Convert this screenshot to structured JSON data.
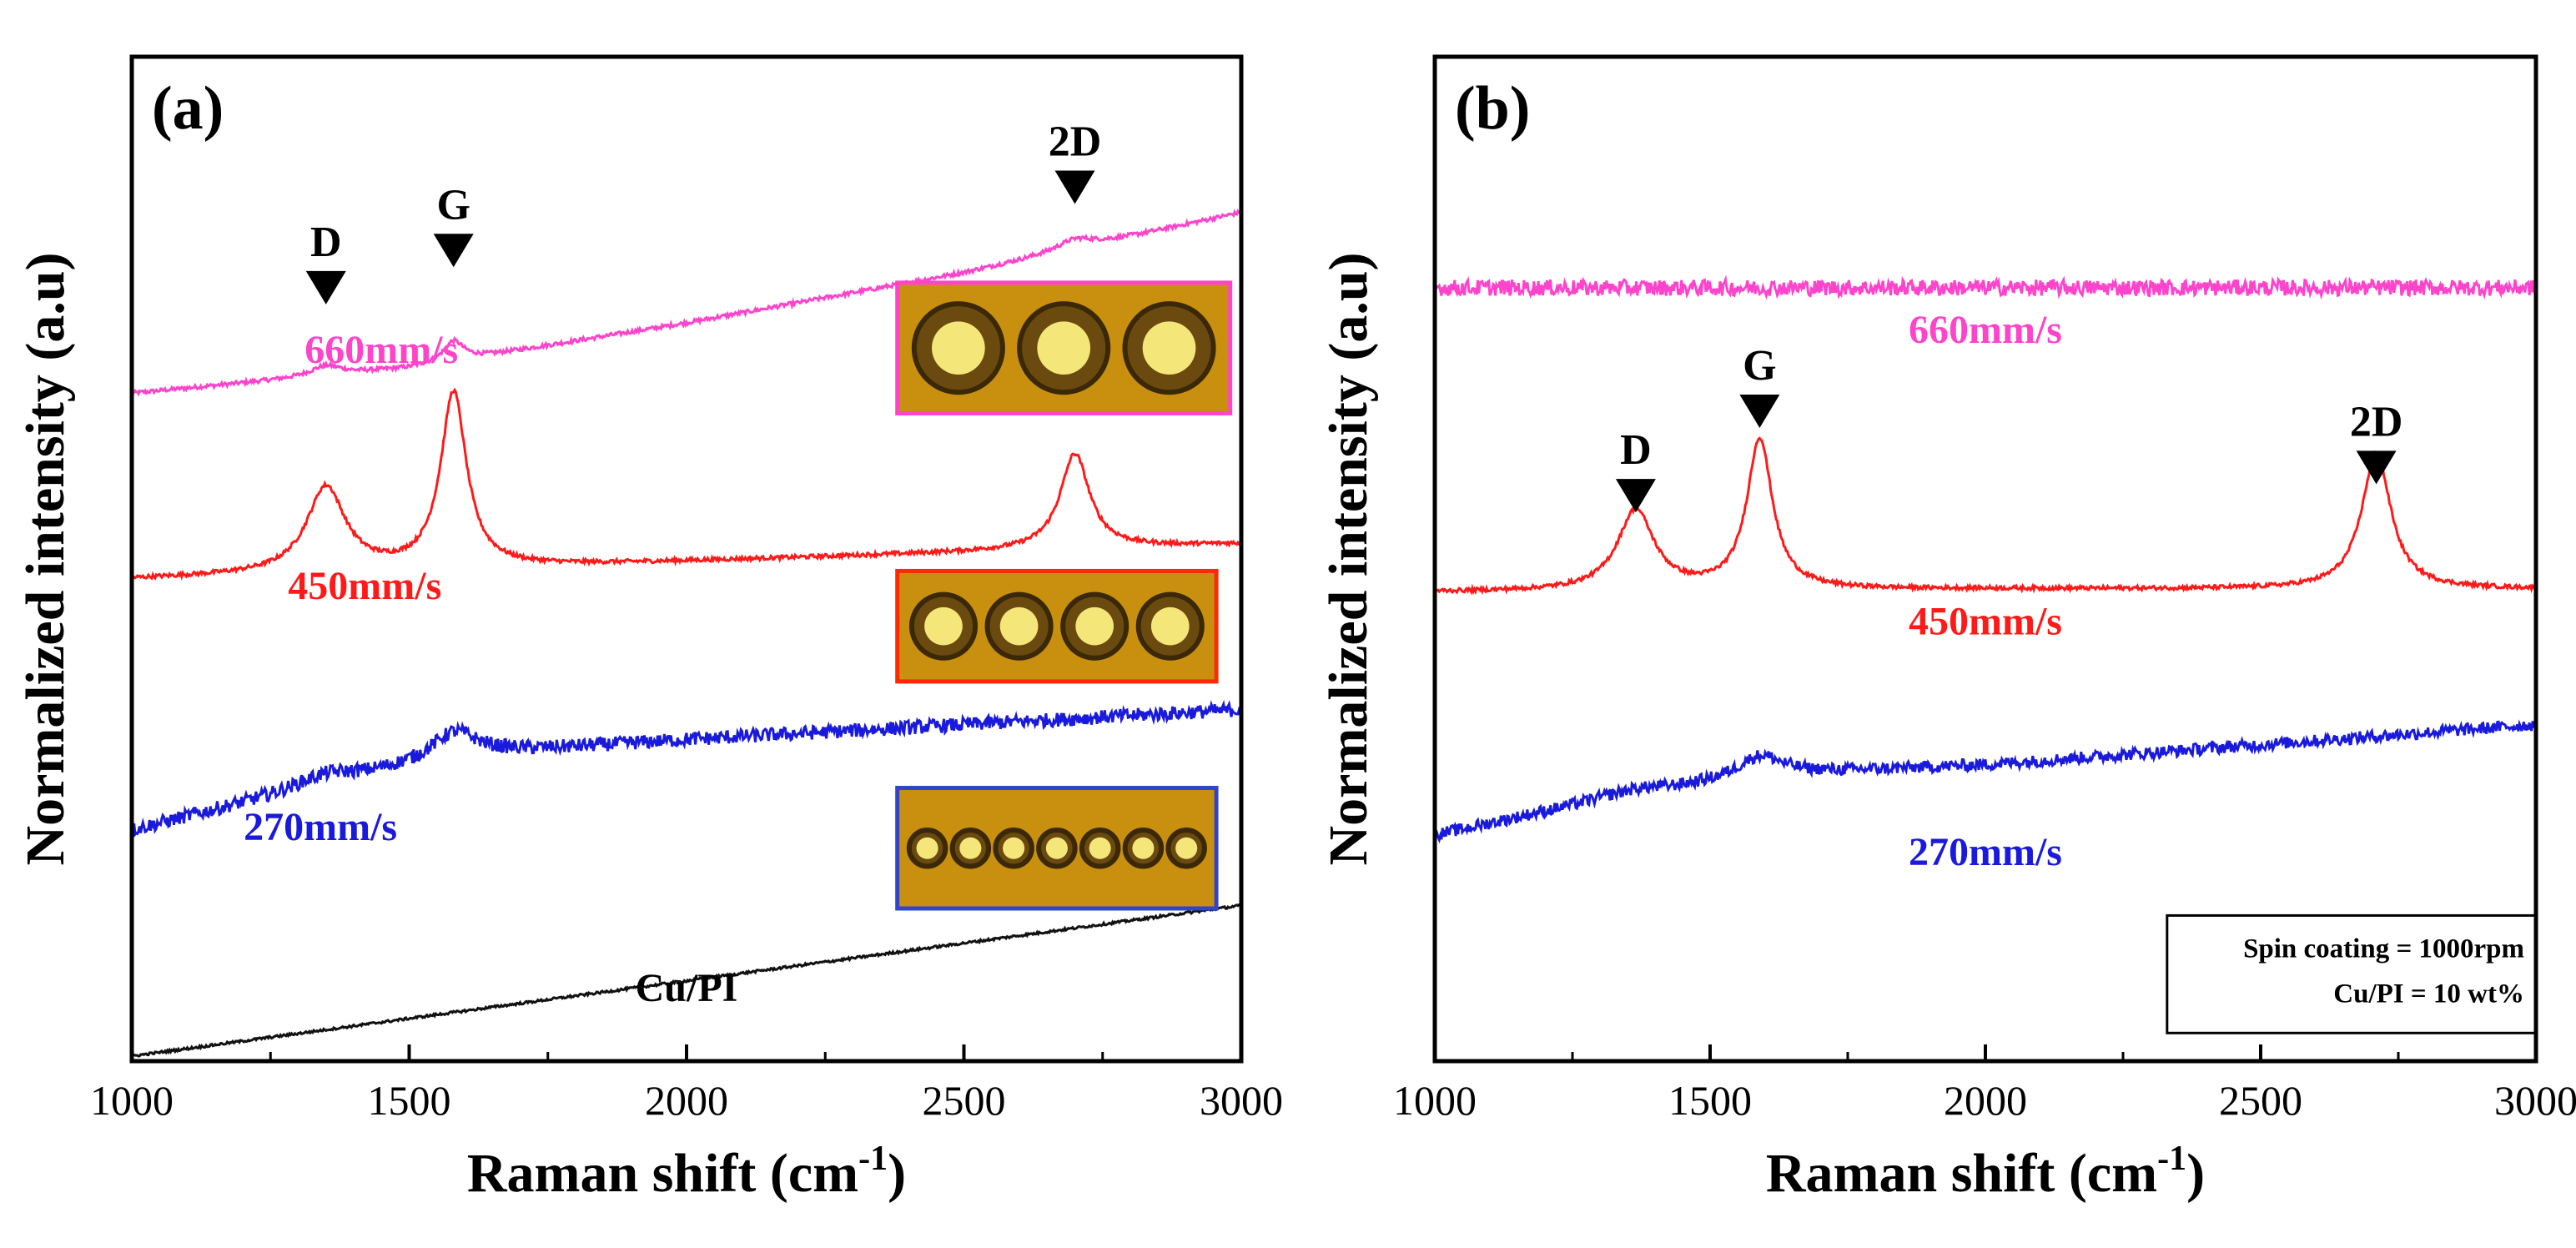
{
  "chart_data": [
    {
      "panel": "(a)",
      "type": "line",
      "xlabel": "Raman shift (cm",
      "xlabel_sup": "-1",
      "xlabel_end": ")",
      "ylabel": "Normalized intensity (a.u)",
      "xlim": [
        1000,
        3000
      ],
      "ylim": [
        0,
        10
      ],
      "xticks": [
        "1000",
        "1500",
        "2000",
        "2500",
        "3000"
      ],
      "y_ticks_shown": false,
      "peaks": [
        {
          "label": "D",
          "x": 1350,
          "y": 7.85
        },
        {
          "label": "G",
          "x": 1580,
          "y": 8.22
        },
        {
          "label": "2D",
          "x": 2700,
          "y": 8.85
        }
      ],
      "series": [
        {
          "name": "660mm/s",
          "color": "#ff44cc",
          "noise": 0.02,
          "label_xy": [
            1450,
            6.95
          ],
          "baseline": [
            [
              1000,
              6.65
            ],
            [
              1500,
              6.9
            ],
            [
              2000,
              7.35
            ],
            [
              2500,
              7.85
            ],
            [
              3000,
              8.45
            ]
          ],
          "peaks": [
            [
              1350,
              0.1,
              35
            ],
            [
              1580,
              0.2,
              22
            ],
            [
              2700,
              0.1,
              40
            ]
          ]
        },
        {
          "name": "450mm/s",
          "color": "#ff1a1a",
          "noise": 0.02,
          "label_xy": [
            1420,
            4.6
          ],
          "baseline": [
            [
              1000,
              4.8
            ],
            [
              3000,
              5.15
            ]
          ],
          "peaks": [
            [
              1350,
              0.85,
              42
            ],
            [
              1580,
              1.75,
              28
            ],
            [
              2700,
              0.95,
              32
            ]
          ]
        },
        {
          "name": "270mm/s",
          "color": "#1a1add",
          "noise": 0.07,
          "label_xy": [
            1340,
            2.2
          ],
          "baseline": [
            [
              1000,
              2.3
            ],
            [
              1300,
              2.7
            ],
            [
              1600,
              3.05
            ],
            [
              2000,
              3.2
            ],
            [
              3000,
              3.5
            ]
          ],
          "peaks": [
            [
              1350,
              0.1,
              60
            ],
            [
              1580,
              0.25,
              50
            ]
          ]
        },
        {
          "name": "Cu/PI",
          "color": "#111111",
          "noise": 0.012,
          "label_xy": [
            2000,
            0.6
          ],
          "baseline": [
            [
              1000,
              0.05
            ],
            [
              3000,
              1.55
            ]
          ],
          "peaks": []
        }
      ],
      "insets": [
        {
          "border": "#ff44cc",
          "spots": 3,
          "x": [
            2380,
            2980
          ],
          "y": [
            6.45,
            7.75
          ]
        },
        {
          "border": "#ff2a00",
          "spots": 4,
          "x": [
            2380,
            2955
          ],
          "y": [
            3.78,
            4.88
          ]
        },
        {
          "border": "#3344cc",
          "spots": 7,
          "x": [
            2380,
            2955
          ],
          "y": [
            1.52,
            2.72
          ]
        }
      ]
    },
    {
      "panel": "(b)",
      "type": "line",
      "xlabel": "Raman shift (cm",
      "xlabel_sup": "-1",
      "xlabel_end": ")",
      "ylabel": "Normalized intensity (a.u)",
      "xlim": [
        1000,
        3000
      ],
      "ylim": [
        0,
        10
      ],
      "xticks": [
        "1000",
        "1500",
        "2000",
        "2500",
        "3000"
      ],
      "y_ticks_shown": false,
      "peaks": [
        {
          "label": "D",
          "x": 1365,
          "y": 5.78
        },
        {
          "label": "G",
          "x": 1590,
          "y": 6.62
        },
        {
          "label": "2D",
          "x": 2710,
          "y": 6.06
        }
      ],
      "series": [
        {
          "name": "660mm/s",
          "color": "#ff44cc",
          "noise": 0.08,
          "label_xy": [
            2000,
            7.15
          ],
          "baseline": [
            [
              1000,
              7.7
            ],
            [
              3000,
              7.7
            ]
          ],
          "peaks": []
        },
        {
          "name": "450mm/s",
          "color": "#ff1a1a",
          "noise": 0.02,
          "label_xy": [
            2000,
            4.25
          ],
          "baseline": [
            [
              1000,
              4.67
            ],
            [
              2000,
              4.7
            ],
            [
              3000,
              4.7
            ]
          ],
          "peaks": [
            [
              1365,
              0.8,
              40
            ],
            [
              1590,
              1.5,
              28
            ],
            [
              2710,
              1.35,
              32
            ]
          ]
        },
        {
          "name": "270mm/s",
          "color": "#1a1add",
          "noise": 0.06,
          "label_xy": [
            2000,
            1.95
          ],
          "baseline": [
            [
              1000,
              2.25
            ],
            [
              1300,
              2.6
            ],
            [
              1600,
              2.85
            ],
            [
              2000,
              2.95
            ],
            [
              3000,
              3.35
            ]
          ],
          "peaks": [
            [
              1365,
              0.05,
              60
            ],
            [
              1590,
              0.2,
              50
            ]
          ]
        }
      ],
      "info_box": {
        "lines": [
          "Spin coating = 1000rpm",
          "Cu/PI = 10 wt%"
        ],
        "x": [
          2330,
          3000
        ],
        "y": [
          0.28,
          1.45
        ]
      }
    }
  ]
}
